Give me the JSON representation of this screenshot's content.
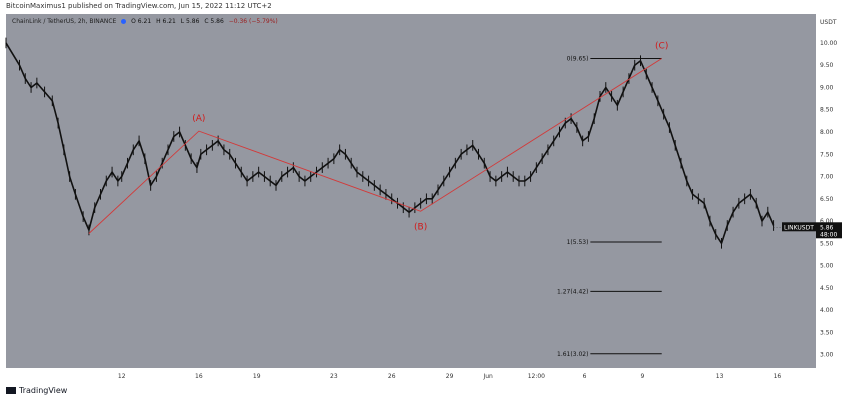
{
  "header": {
    "publisher": "BitcoinMaximus1 published on TradingView.com, Jun 15, 2022 11:12 UTC+2"
  },
  "legend": {
    "symbol": "ChainLink / TetherUS, 2h, BINANCE",
    "open": "O 6.21",
    "high": "H 6.21",
    "low": "L 5.86",
    "close": "C 5.86",
    "change": "−0.36 (−5.79%)"
  },
  "footer": {
    "brand": "TradingView"
  },
  "colors": {
    "plot_bg": "#9598a1",
    "candle": "#111111",
    "wave_line": "#d23a3a",
    "wave_label": "#d11a1a",
    "fib_line": "#111111",
    "price_tag_bg": "#111111"
  },
  "chart_data": {
    "type": "line",
    "title": "ChainLink / TetherUS, 2h, BINANCE",
    "currency_label": "USDT",
    "ylim": [
      2.7,
      10.65
    ],
    "y_ticks": [
      3.0,
      3.5,
      4.0,
      4.5,
      5.0,
      5.5,
      6.0,
      6.5,
      7.0,
      7.5,
      8.0,
      8.5,
      9.0,
      9.5,
      10.0
    ],
    "y_tick_labels": [
      "3.00",
      "3.50",
      "4.00",
      "4.50",
      "5.00",
      "5.50",
      "6.00",
      "6.50",
      "7.00",
      "7.50",
      "8.00",
      "8.50",
      "9.00",
      "9.50",
      "10.00"
    ],
    "x_labels": [
      "12",
      "16",
      "19",
      "23",
      "26",
      "29",
      "Jun",
      "12:00",
      "6",
      "9",
      "13",
      "16"
    ],
    "x_label_pos": [
      2.0,
      6.0,
      9.0,
      13.0,
      16.0,
      19.0,
      21.0,
      23.5,
      26.0,
      29.0,
      33.0,
      36.0
    ],
    "x_range": [
      -4.0,
      38.0
    ],
    "series": [
      {
        "x": [
          -4.0,
          -3.3,
          -3.0,
          -2.7,
          -2.4,
          -2.0,
          -1.6,
          -1.3,
          -1.0,
          -0.7,
          -0.4,
          0.0,
          0.3,
          0.6,
          0.9,
          1.2,
          1.5,
          1.8,
          2.0,
          2.3,
          2.6,
          2.9,
          3.2,
          3.5,
          3.8,
          4.1,
          4.4,
          4.7,
          5.0,
          5.3,
          5.6,
          5.9,
          6.1,
          6.4,
          6.7,
          7.0,
          7.3,
          7.6,
          7.9,
          8.2,
          8.5,
          8.8,
          9.1,
          9.4,
          9.7,
          10.0,
          10.3,
          10.6,
          10.9,
          11.2,
          11.5,
          11.8,
          12.1,
          12.4,
          12.7,
          13.0,
          13.3,
          13.6,
          13.9,
          14.2,
          14.5,
          14.8,
          15.1,
          15.4,
          15.7,
          16.0,
          16.3,
          16.6,
          16.9,
          17.2,
          17.5,
          17.8,
          18.1,
          18.4,
          18.7,
          19.0,
          19.3,
          19.6,
          19.9,
          20.2,
          20.5,
          20.8,
          21.1,
          21.4,
          21.7,
          22.0,
          22.3,
          22.6,
          22.9,
          23.2,
          23.5,
          23.8,
          24.1,
          24.4,
          24.7,
          25.0,
          25.3,
          25.6,
          25.9,
          26.2,
          26.5,
          26.8,
          27.1,
          27.4,
          27.7,
          28.0,
          28.3,
          28.6,
          28.9,
          29.2,
          29.5,
          29.8,
          30.1,
          30.4,
          30.7,
          31.0,
          31.3,
          31.6,
          31.9,
          32.2,
          32.5,
          32.8,
          33.1,
          33.4,
          33.7,
          34.0,
          34.3,
          34.6,
          34.9,
          35.2,
          35.5,
          35.8
        ],
        "y": [
          10.0,
          9.5,
          9.2,
          9.0,
          9.1,
          8.9,
          8.7,
          8.2,
          7.6,
          7.0,
          6.6,
          6.1,
          5.8,
          6.3,
          6.6,
          6.9,
          7.1,
          6.9,
          7.0,
          7.3,
          7.6,
          7.8,
          7.4,
          6.8,
          7.0,
          7.3,
          7.6,
          7.9,
          8.0,
          7.7,
          7.4,
          7.2,
          7.5,
          7.6,
          7.7,
          7.8,
          7.6,
          7.5,
          7.3,
          7.1,
          6.9,
          7.0,
          7.1,
          7.0,
          6.9,
          6.8,
          7.0,
          7.1,
          7.2,
          7.0,
          6.9,
          7.0,
          7.1,
          7.2,
          7.3,
          7.4,
          7.6,
          7.5,
          7.3,
          7.1,
          7.0,
          6.9,
          6.8,
          6.7,
          6.6,
          6.5,
          6.4,
          6.3,
          6.2,
          6.3,
          6.4,
          6.5,
          6.5,
          6.7,
          6.9,
          7.1,
          7.3,
          7.5,
          7.6,
          7.7,
          7.5,
          7.3,
          7.0,
          6.9,
          7.0,
          7.1,
          7.0,
          6.9,
          6.9,
          7.0,
          7.2,
          7.4,
          7.6,
          7.8,
          8.0,
          8.2,
          8.3,
          8.1,
          7.8,
          7.9,
          8.3,
          8.8,
          9.0,
          8.8,
          8.6,
          8.9,
          9.2,
          9.5,
          9.6,
          9.3,
          9.0,
          8.7,
          8.4,
          8.1,
          7.7,
          7.3,
          6.9,
          6.6,
          6.5,
          6.4,
          6.0,
          5.7,
          5.5,
          5.9,
          6.2,
          6.4,
          6.5,
          6.6,
          6.4,
          6.0,
          6.2,
          5.9
        ]
      }
    ],
    "waves": [
      {
        "label": "(A)",
        "x": 6.0,
        "y": 8.02
      },
      {
        "label": "(B)",
        "x": 17.5,
        "y": 6.22
      },
      {
        "label": "(C)",
        "x": 30.0,
        "y": 9.65
      }
    ],
    "wave_line": [
      {
        "x": 0.3,
        "y": 5.72
      },
      {
        "x": 6.0,
        "y": 8.02
      },
      {
        "x": 17.5,
        "y": 6.22
      },
      {
        "x": 30.0,
        "y": 9.65
      }
    ],
    "fib_levels": [
      {
        "label": "0(9.65)",
        "value": 9.65
      },
      {
        "label": "1(5.53)",
        "value": 5.53
      },
      {
        "label": "1.27(4.42)",
        "value": 4.42
      },
      {
        "label": "1.61(3.02)",
        "value": 3.02
      }
    ],
    "last_price": {
      "ticker": "LINKUSDT",
      "price": "5.86",
      "countdown": "48:00",
      "value": 5.86
    }
  }
}
